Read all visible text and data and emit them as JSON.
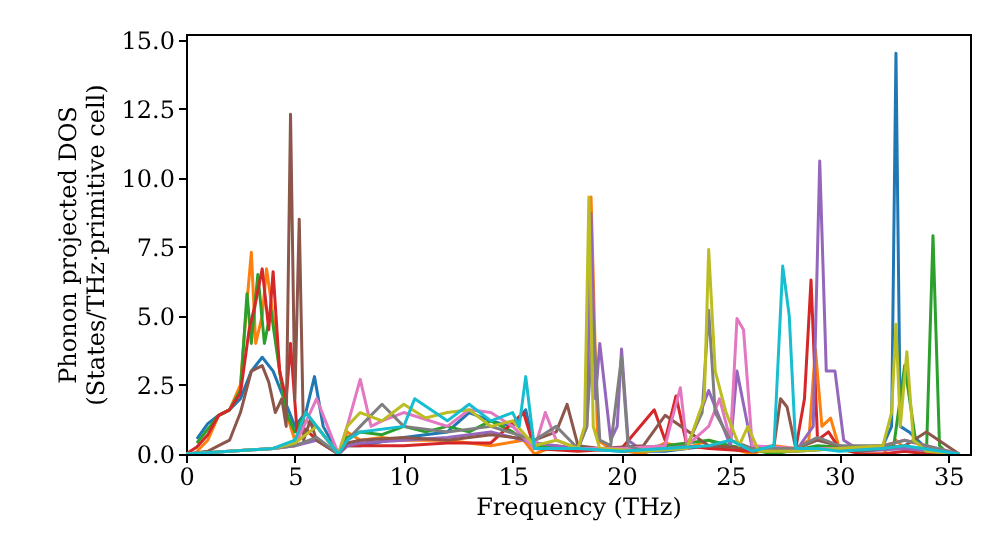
{
  "chart_data": {
    "type": "line",
    "xlabel": "Frequency (THz)",
    "ylabel": "Phonon projected DOS\n(States/THz·primitive cell)",
    "xlim": [
      0,
      36
    ],
    "ylim": [
      0,
      15.2
    ],
    "xticks": [
      0,
      5,
      10,
      15,
      20,
      25,
      30,
      35
    ],
    "yticks": [
      {
        "value": 0,
        "label": "0.0"
      },
      {
        "value": 2.5,
        "label": "2.5"
      },
      {
        "value": 5,
        "label": "5.0"
      },
      {
        "value": 7.5,
        "label": "7.5"
      },
      {
        "value": 10,
        "label": "10.0"
      },
      {
        "value": 12.5,
        "label": "12.5"
      },
      {
        "value": 15,
        "label": "15.0"
      }
    ],
    "grid": false,
    "marker": "none",
    "line_style": "solid",
    "series": [
      {
        "color": "#1f77b4",
        "x": [
          0.5,
          1,
          1.5,
          2,
          2.5,
          3,
          3.5,
          4,
          4.5,
          5,
          5.5,
          5.9,
          6.3,
          7,
          7.4,
          8,
          10,
          12,
          13,
          14,
          15,
          15.6,
          16,
          18,
          20,
          22,
          24,
          26,
          28,
          30,
          32,
          32.4,
          32.6,
          32.8,
          33.2,
          34,
          35,
          35.5
        ],
        "values": [
          0.55,
          1.1,
          1.4,
          1.6,
          2,
          3,
          3.5,
          3,
          2,
          1,
          1.5,
          2.8,
          1,
          0,
          0.3,
          0.3,
          0.6,
          0.8,
          1.5,
          1.2,
          1,
          1.6,
          0.2,
          0.2,
          0.1,
          0.1,
          0.3,
          0.1,
          0.1,
          0.2,
          0.3,
          1,
          14.5,
          1,
          0.8,
          0.2,
          0,
          0
        ]
      },
      {
        "color": "#ff7f0e",
        "x": [
          0.5,
          1,
          1.5,
          2,
          2.5,
          2.8,
          3.0,
          3.2,
          3.5,
          3.7,
          4.0,
          4.3,
          4.6,
          5.0,
          5.5,
          6,
          7,
          7.4,
          8,
          9,
          10,
          12,
          14,
          15.5,
          16,
          17,
          18,
          18.4,
          18.6,
          18.9,
          19.5,
          21,
          22,
          23,
          24,
          25,
          26,
          27,
          28,
          28.6,
          28.9,
          29.2,
          29.6,
          30,
          31,
          32,
          32.6,
          33,
          34
        ],
        "values": [
          0.1,
          0.5,
          1.4,
          1.6,
          2.5,
          5.5,
          7.3,
          4,
          5,
          6.7,
          5,
          3,
          1.5,
          0.5,
          1.2,
          1,
          0,
          0.8,
          0.5,
          0.6,
          0.5,
          0.5,
          0.3,
          0.5,
          0,
          0.3,
          0.2,
          1,
          9.3,
          0.5,
          0.2,
          0,
          0.4,
          0.2,
          0.5,
          0.2,
          0,
          0.3,
          0.2,
          0.5,
          3.8,
          1,
          1.3,
          0.2,
          0,
          0,
          0.5,
          0.2,
          0
        ]
      },
      {
        "color": "#2ca02c",
        "x": [
          0.5,
          1,
          1.5,
          2,
          2.5,
          2.8,
          3.0,
          3.3,
          3.6,
          3.9,
          4.3,
          4.6,
          5,
          5.5,
          6,
          7,
          7.4,
          8,
          9,
          10,
          11,
          12,
          13,
          14,
          15,
          16,
          18,
          20,
          22,
          24,
          25,
          27,
          29,
          31,
          32.5,
          33,
          33.5,
          34,
          34.3,
          34.6,
          35,
          35.5
        ],
        "values": [
          0.4,
          0.9,
          1.4,
          1.6,
          2.3,
          5.8,
          4,
          6.5,
          4,
          5.2,
          3,
          1.5,
          0.8,
          1.5,
          1,
          0,
          0.6,
          0.8,
          0.7,
          1,
          0.8,
          1,
          0.8,
          1.2,
          0.8,
          0.3,
          0.2,
          0.2,
          0.3,
          0.5,
          0.3,
          0,
          0.3,
          0.2,
          0.3,
          3.2,
          0.5,
          0,
          7.9,
          0.3,
          0,
          0
        ]
      },
      {
        "color": "#d62728",
        "x": [
          0,
          0.5,
          1,
          1.5,
          2,
          2.5,
          2.9,
          3.2,
          3.5,
          3.8,
          4.0,
          4.3,
          4.6,
          4.8,
          5.1,
          5.5,
          6,
          7,
          7.4,
          8,
          10,
          12,
          14,
          15.5,
          16,
          18,
          20,
          21.5,
          22,
          22.5,
          23,
          24,
          26,
          28,
          28.4,
          28.7,
          29,
          29.5,
          30,
          31,
          32,
          33,
          34,
          35,
          35.5
        ],
        "values": [
          0,
          0.25,
          0.7,
          1.4,
          1.6,
          2.2,
          4.5,
          5.5,
          6.7,
          4.5,
          6.6,
          3,
          2,
          4,
          0.8,
          0.9,
          0.5,
          0,
          0.3,
          0.3,
          0.3,
          0.4,
          0.4,
          1.5,
          0.2,
          0.1,
          0.2,
          1.6,
          0.5,
          2.1,
          0.3,
          0.2,
          0.1,
          0.2,
          2,
          6.3,
          0.5,
          0.8,
          0.2,
          0,
          0,
          0.1,
          0,
          0,
          0
        ]
      },
      {
        "color": "#9467bd",
        "x": [
          0,
          2,
          4,
          5,
          6,
          7,
          7.4,
          8,
          10,
          12,
          14,
          16,
          17,
          18,
          18.4,
          18.6,
          18.8,
          19,
          19.5,
          19.8,
          20,
          20.3,
          21,
          23,
          24,
          25,
          25.3,
          26,
          28,
          28.8,
          29.1,
          29.4,
          29.8,
          30.2,
          31,
          33,
          35.5
        ],
        "values": [
          0,
          0.1,
          0.2,
          0.3,
          0.5,
          0,
          0.3,
          0.4,
          0.5,
          0.6,
          0.8,
          0.4,
          0.3,
          0.2,
          1,
          8.7,
          2,
          4,
          0.5,
          1,
          3.8,
          0.5,
          0.1,
          0.2,
          2.3,
          0.3,
          3,
          0.2,
          0.1,
          1,
          10.6,
          3,
          3,
          0.5,
          0.1,
          0.2,
          0
        ]
      },
      {
        "color": "#8c564b",
        "x": [
          0,
          1,
          1.5,
          2,
          2.5,
          3,
          3.5,
          3.8,
          4.1,
          4.4,
          4.6,
          4.8,
          5.0,
          5.2,
          5.4,
          5.7,
          6,
          7,
          7.4,
          8,
          10,
          12,
          14,
          16,
          17,
          17.5,
          18,
          19,
          21,
          22,
          24,
          26,
          27,
          27.3,
          27.6,
          28,
          29,
          31,
          33,
          34,
          35.5
        ],
        "values": [
          0,
          0.1,
          0.3,
          0.5,
          1.5,
          3,
          3.2,
          2.6,
          1.5,
          2,
          1,
          12.3,
          2,
          8.5,
          0.5,
          1.2,
          0.5,
          0,
          0.4,
          0.5,
          0.6,
          0.5,
          0.7,
          0.5,
          0.8,
          1.8,
          0.3,
          0.2,
          0.3,
          1.4,
          0.3,
          0.2,
          0.3,
          2,
          1.7,
          0.2,
          0.5,
          0.1,
          0.3,
          0.8,
          0
        ]
      },
      {
        "color": "#e377c2",
        "x": [
          0,
          2,
          4,
          5,
          6,
          6.5,
          7,
          7.4,
          8,
          8.5,
          9,
          10,
          12,
          13,
          14,
          15,
          16,
          16.5,
          17,
          18,
          20,
          22,
          22.7,
          23,
          24,
          24.5,
          25,
          25.3,
          25.6,
          26,
          28,
          30,
          32,
          33,
          35.5
        ],
        "values": [
          0,
          0.1,
          0.2,
          0.3,
          2,
          1,
          0,
          1,
          2.7,
          1,
          1.2,
          1.5,
          1,
          1.6,
          1.5,
          1,
          0.2,
          1.5,
          0.5,
          0.2,
          0.2,
          0.3,
          2.4,
          0.3,
          1,
          2,
          0.5,
          4.9,
          4.5,
          0.3,
          0.2,
          0.2,
          0.3,
          0.5,
          0
        ]
      },
      {
        "color": "#7f7f7f",
        "x": [
          0,
          2,
          4,
          5,
          6,
          7,
          7.4,
          8,
          9,
          10,
          12,
          14,
          16,
          17,
          18,
          18.4,
          18.7,
          19,
          19.5,
          20,
          20.3,
          21,
          23,
          23.7,
          24,
          24.3,
          25,
          26,
          28,
          29,
          30,
          32,
          33,
          35.5
        ],
        "values": [
          0,
          0.1,
          0.2,
          0.3,
          0.6,
          0,
          0.5,
          1,
          1.8,
          1,
          0.8,
          1,
          0.5,
          1,
          0.2,
          1,
          4.8,
          0.5,
          0.3,
          3.5,
          0.3,
          0.1,
          0.3,
          1.5,
          5.2,
          1.5,
          0.5,
          0.2,
          0.2,
          0.6,
          0.3,
          0.3,
          0.5,
          0
        ]
      },
      {
        "color": "#bcbd22",
        "x": [
          0,
          2,
          4,
          5,
          6,
          7,
          7.4,
          8,
          9,
          10,
          11,
          12,
          13,
          14,
          15,
          16,
          17,
          18,
          18.3,
          18.5,
          18.7,
          19,
          21,
          23,
          23.8,
          24,
          24.3,
          24.8,
          25.4,
          25.8,
          26.3,
          28,
          30,
          32,
          32.4,
          32.6,
          32.8,
          33.1,
          33.4,
          34,
          35.5
        ],
        "values": [
          0,
          0.1,
          0.2,
          0.4,
          1,
          0,
          1,
          1.5,
          1.2,
          1.8,
          1.3,
          1.5,
          1.6,
          1,
          1.2,
          0.3,
          0.5,
          0.2,
          1,
          9.3,
          1,
          0.2,
          0.1,
          0.2,
          2,
          7.4,
          3,
          1.5,
          0.3,
          1,
          0.1,
          0.1,
          0.2,
          0.3,
          1.5,
          4.7,
          1,
          3.7,
          0.5,
          0.1,
          0
        ]
      },
      {
        "color": "#17becf",
        "x": [
          0,
          2,
          4,
          5,
          5.5,
          6,
          7,
          7.4,
          8,
          10,
          10.5,
          12,
          13,
          14,
          15,
          15.3,
          15.6,
          16,
          18,
          20,
          22,
          24,
          25,
          26,
          27,
          27.4,
          27.7,
          28,
          29,
          30,
          32,
          33,
          35.5
        ],
        "values": [
          0,
          0.1,
          0.2,
          0.5,
          1.5,
          1,
          0,
          0.5,
          0.8,
          1,
          2,
          1.2,
          1.8,
          1.2,
          1.5,
          1,
          2.8,
          0.2,
          0.2,
          0.1,
          0.2,
          0.3,
          0.5,
          0.1,
          0.3,
          6.8,
          5,
          0.2,
          0.2,
          0.1,
          0.2,
          0.3,
          0
        ]
      }
    ]
  }
}
